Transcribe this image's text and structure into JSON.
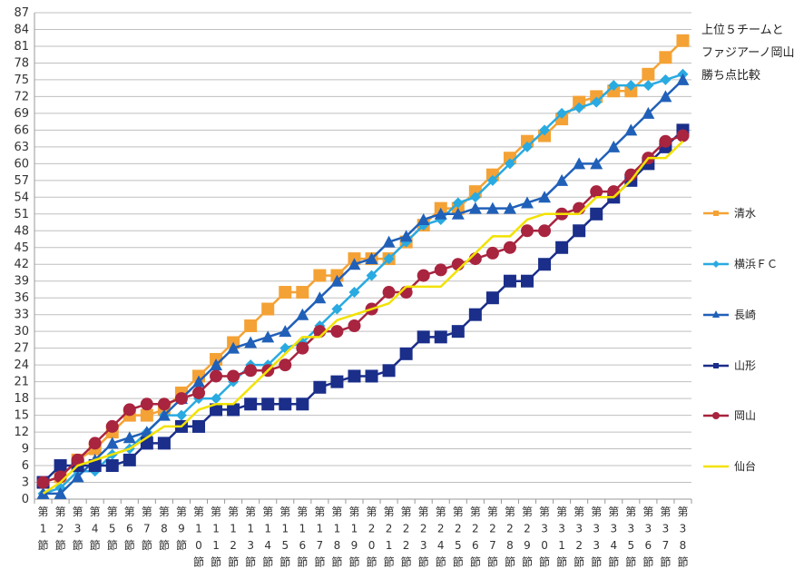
{
  "chart_data": {
    "type": "line",
    "title_lines": [
      "上位５チームと",
      "ファジアーノ岡山",
      "勝ち点比較"
    ],
    "ylim": [
      0,
      87
    ],
    "yticks": [
      0,
      3,
      6,
      9,
      12,
      15,
      18,
      21,
      24,
      27,
      30,
      33,
      36,
      39,
      42,
      45,
      48,
      51,
      54,
      57,
      60,
      63,
      66,
      69,
      72,
      75,
      78,
      81,
      84,
      87
    ],
    "categories": [
      "第1節",
      "第2節",
      "第3節",
      "第4節",
      "第5節",
      "第6節",
      "第7節",
      "第8節",
      "第9節",
      "第10節",
      "第11節",
      "第12節",
      "第13節",
      "第14節",
      "第15節",
      "第16節",
      "第17節",
      "第18節",
      "第19節",
      "第20節",
      "第21節",
      "第22節",
      "第23節",
      "第24節",
      "第25節",
      "第26節",
      "第27節",
      "第28節",
      "第29節",
      "第30節",
      "第31節",
      "第32節",
      "第33節",
      "第34節",
      "第35節",
      "第36節",
      "第37節",
      "第38節"
    ],
    "grid": true,
    "legend_position": "right",
    "series": [
      {
        "name": "清水",
        "color": "#F4A235",
        "marker": "square",
        "values": [
          3,
          4,
          7,
          9,
          12,
          15,
          15,
          16,
          19,
          22,
          25,
          28,
          31,
          34,
          37,
          37,
          40,
          40,
          43,
          43,
          43,
          46,
          49,
          52,
          52,
          55,
          58,
          61,
          64,
          65,
          68,
          71,
          72,
          73,
          73,
          76,
          79,
          82
        ]
      },
      {
        "name": "横浜ＦＣ",
        "color": "#29AAE1",
        "marker": "diamond",
        "values": [
          1,
          2,
          5,
          5,
          8,
          9,
          12,
          15,
          15,
          18,
          18,
          21,
          24,
          24,
          27,
          28,
          31,
          34,
          37,
          40,
          43,
          46,
          49,
          50,
          53,
          54,
          57,
          60,
          63,
          66,
          69,
          70,
          71,
          74,
          74,
          74,
          75,
          76
        ]
      },
      {
        "name": "長崎",
        "color": "#2060B8",
        "marker": "triangle",
        "values": [
          1,
          1,
          4,
          7,
          10,
          11,
          12,
          15,
          18,
          21,
          24,
          27,
          28,
          29,
          30,
          33,
          36,
          39,
          42,
          43,
          46,
          47,
          50,
          51,
          51,
          52,
          52,
          52,
          53,
          54,
          57,
          60,
          60,
          63,
          66,
          69,
          72,
          75
        ]
      },
      {
        "name": "山形",
        "color": "#1A2E8A",
        "marker": "square",
        "values": [
          3,
          6,
          6,
          6,
          6,
          7,
          10,
          10,
          13,
          13,
          16,
          16,
          17,
          17,
          17,
          17,
          20,
          21,
          22,
          22,
          23,
          26,
          29,
          29,
          30,
          33,
          36,
          39,
          39,
          42,
          45,
          48,
          51,
          54,
          57,
          60,
          63,
          66
        ]
      },
      {
        "name": "岡山",
        "color": "#A8243F",
        "marker": "circle",
        "values": [
          3,
          4,
          7,
          10,
          13,
          16,
          17,
          17,
          18,
          19,
          22,
          22,
          23,
          23,
          24,
          27,
          30,
          30,
          31,
          34,
          37,
          37,
          40,
          41,
          42,
          43,
          44,
          45,
          48,
          48,
          51,
          52,
          55,
          55,
          58,
          61,
          64,
          65
        ]
      },
      {
        "name": "仙台",
        "color": "#F2E200",
        "marker": "none",
        "values": [
          1,
          3,
          6,
          7,
          8,
          9,
          11,
          13,
          13,
          16,
          17,
          17,
          20,
          23,
          26,
          29,
          29,
          32,
          33,
          34,
          35,
          38,
          38,
          38,
          41,
          44,
          47,
          47,
          50,
          51,
          51,
          51,
          54,
          54,
          57,
          61,
          61,
          64
        ]
      }
    ]
  }
}
